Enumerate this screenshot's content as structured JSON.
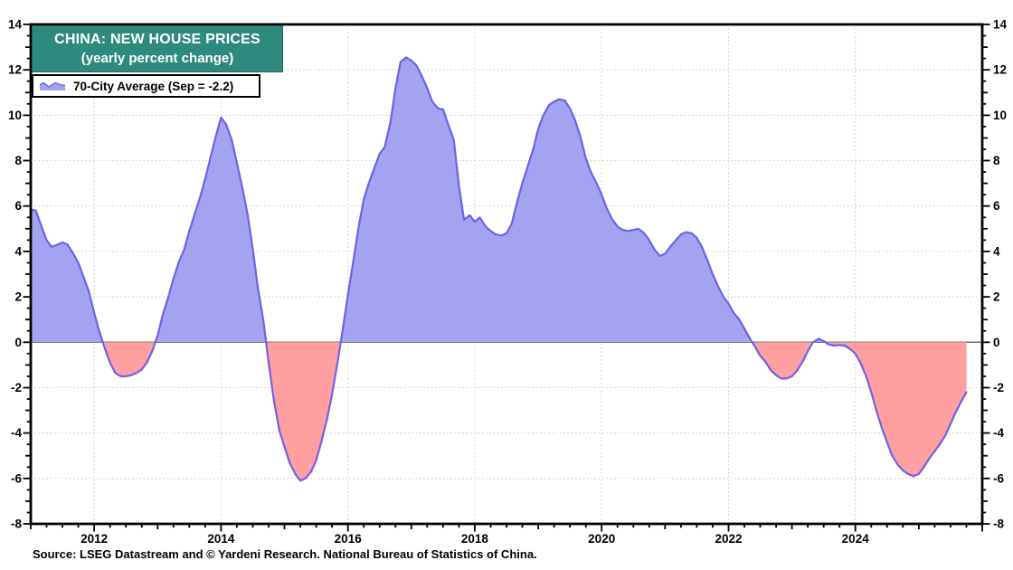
{
  "title": {
    "line1": "CHINA: NEW HOUSE PRICES",
    "line2": "(yearly percent change)"
  },
  "legend": {
    "label": "70-City Average (Sep = -2.2)"
  },
  "source": "Source: LSEG Datastream and © Yardeni Research. National Bureau of Statistics of China.",
  "chart_data": {
    "type": "area",
    "title": "CHINA: NEW HOUSE PRICES (yearly percent change)",
    "series_name": "70-City Average",
    "latest_point": {
      "label": "Sep",
      "value": -2.2
    },
    "xlabel": "",
    "ylabel": "yearly percent change",
    "xlim": [
      2011,
      2026
    ],
    "ylim": [
      -8,
      14
    ],
    "x_ticks": [
      2012,
      2014,
      2016,
      2018,
      2020,
      2022,
      2024
    ],
    "y_ticks": [
      -8,
      -6,
      -4,
      -2,
      0,
      2,
      4,
      6,
      8,
      10,
      12,
      14
    ],
    "grid": "dotted gridlines at labeled ticks, solid gray zero line, y labels on both sides",
    "colors": {
      "fill_positive": "#a3a3f1",
      "fill_negative": "#ff9f9f",
      "line": "#6f61e8",
      "title_bg": "#2e8a7c",
      "zero_line": "#6f6f6f",
      "gridline": "#c9c9c9",
      "axis": "#000000"
    },
    "points": [
      [
        2011.0,
        5.85
      ],
      [
        2011.08,
        5.8
      ],
      [
        2011.17,
        5.1
      ],
      [
        2011.25,
        4.5
      ],
      [
        2011.33,
        4.2
      ],
      [
        2011.42,
        4.3
      ],
      [
        2011.5,
        4.4
      ],
      [
        2011.58,
        4.3
      ],
      [
        2011.67,
        3.9
      ],
      [
        2011.75,
        3.5
      ],
      [
        2011.83,
        2.9
      ],
      [
        2011.92,
        2.2
      ],
      [
        2012.0,
        1.3
      ],
      [
        2012.08,
        0.5
      ],
      [
        2012.17,
        -0.3
      ],
      [
        2012.25,
        -0.9
      ],
      [
        2012.33,
        -1.35
      ],
      [
        2012.42,
        -1.5
      ],
      [
        2012.5,
        -1.5
      ],
      [
        2012.58,
        -1.45
      ],
      [
        2012.67,
        -1.35
      ],
      [
        2012.75,
        -1.2
      ],
      [
        2012.83,
        -0.9
      ],
      [
        2012.92,
        -0.35
      ],
      [
        2013.0,
        0.3
      ],
      [
        2013.08,
        1.2
      ],
      [
        2013.17,
        2.0
      ],
      [
        2013.25,
        2.8
      ],
      [
        2013.33,
        3.5
      ],
      [
        2013.42,
        4.1
      ],
      [
        2013.5,
        4.9
      ],
      [
        2013.58,
        5.6
      ],
      [
        2013.67,
        6.4
      ],
      [
        2013.75,
        7.2
      ],
      [
        2013.83,
        8.1
      ],
      [
        2013.92,
        9.1
      ],
      [
        2014.0,
        9.9
      ],
      [
        2014.08,
        9.6
      ],
      [
        2014.17,
        8.9
      ],
      [
        2014.25,
        7.9
      ],
      [
        2014.33,
        6.9
      ],
      [
        2014.42,
        5.6
      ],
      [
        2014.5,
        4.1
      ],
      [
        2014.58,
        2.4
      ],
      [
        2014.67,
        0.9
      ],
      [
        2014.75,
        -0.9
      ],
      [
        2014.83,
        -2.5
      ],
      [
        2014.92,
        -3.9
      ],
      [
        2015.0,
        -4.6
      ],
      [
        2015.08,
        -5.3
      ],
      [
        2015.17,
        -5.8
      ],
      [
        2015.25,
        -6.1
      ],
      [
        2015.33,
        -6.0
      ],
      [
        2015.42,
        -5.7
      ],
      [
        2015.5,
        -5.2
      ],
      [
        2015.58,
        -4.4
      ],
      [
        2015.67,
        -3.4
      ],
      [
        2015.75,
        -2.3
      ],
      [
        2015.83,
        -1.0
      ],
      [
        2015.92,
        0.6
      ],
      [
        2016.0,
        2.1
      ],
      [
        2016.08,
        3.5
      ],
      [
        2016.17,
        5.1
      ],
      [
        2016.25,
        6.3
      ],
      [
        2016.33,
        7.0
      ],
      [
        2016.42,
        7.7
      ],
      [
        2016.5,
        8.3
      ],
      [
        2016.58,
        8.6
      ],
      [
        2016.67,
        9.7
      ],
      [
        2016.75,
        11.2
      ],
      [
        2016.83,
        12.35
      ],
      [
        2016.92,
        12.55
      ],
      [
        2017.0,
        12.4
      ],
      [
        2017.08,
        12.2
      ],
      [
        2017.17,
        11.7
      ],
      [
        2017.25,
        11.2
      ],
      [
        2017.33,
        10.6
      ],
      [
        2017.42,
        10.3
      ],
      [
        2017.5,
        10.25
      ],
      [
        2017.58,
        9.6
      ],
      [
        2017.67,
        8.9
      ],
      [
        2017.75,
        6.9
      ],
      [
        2017.83,
        5.4
      ],
      [
        2017.92,
        5.6
      ],
      [
        2018.0,
        5.3
      ],
      [
        2018.08,
        5.5
      ],
      [
        2018.17,
        5.1
      ],
      [
        2018.25,
        4.9
      ],
      [
        2018.33,
        4.75
      ],
      [
        2018.42,
        4.7
      ],
      [
        2018.5,
        4.8
      ],
      [
        2018.58,
        5.2
      ],
      [
        2018.67,
        6.2
      ],
      [
        2018.75,
        7.0
      ],
      [
        2018.83,
        7.7
      ],
      [
        2018.92,
        8.5
      ],
      [
        2019.0,
        9.4
      ],
      [
        2019.08,
        10.0
      ],
      [
        2019.17,
        10.45
      ],
      [
        2019.25,
        10.6
      ],
      [
        2019.33,
        10.7
      ],
      [
        2019.42,
        10.65
      ],
      [
        2019.5,
        10.3
      ],
      [
        2019.58,
        9.8
      ],
      [
        2019.67,
        9.0
      ],
      [
        2019.75,
        8.1
      ],
      [
        2019.83,
        7.5
      ],
      [
        2019.92,
        7.0
      ],
      [
        2020.0,
        6.5
      ],
      [
        2020.08,
        5.9
      ],
      [
        2020.17,
        5.4
      ],
      [
        2020.25,
        5.1
      ],
      [
        2020.33,
        4.95
      ],
      [
        2020.42,
        4.9
      ],
      [
        2020.5,
        4.95
      ],
      [
        2020.58,
        5.0
      ],
      [
        2020.67,
        4.8
      ],
      [
        2020.75,
        4.5
      ],
      [
        2020.83,
        4.1
      ],
      [
        2020.92,
        3.8
      ],
      [
        2021.0,
        3.9
      ],
      [
        2021.08,
        4.2
      ],
      [
        2021.17,
        4.5
      ],
      [
        2021.25,
        4.75
      ],
      [
        2021.33,
        4.85
      ],
      [
        2021.42,
        4.8
      ],
      [
        2021.5,
        4.6
      ],
      [
        2021.58,
        4.2
      ],
      [
        2021.67,
        3.6
      ],
      [
        2021.75,
        3.0
      ],
      [
        2021.83,
        2.5
      ],
      [
        2021.92,
        2.0
      ],
      [
        2022.0,
        1.7
      ],
      [
        2022.08,
        1.3
      ],
      [
        2022.17,
        1.0
      ],
      [
        2022.25,
        0.6
      ],
      [
        2022.33,
        0.2
      ],
      [
        2022.42,
        -0.2
      ],
      [
        2022.5,
        -0.6
      ],
      [
        2022.58,
        -0.85
      ],
      [
        2022.67,
        -1.25
      ],
      [
        2022.75,
        -1.45
      ],
      [
        2022.83,
        -1.6
      ],
      [
        2022.92,
        -1.6
      ],
      [
        2023.0,
        -1.5
      ],
      [
        2023.08,
        -1.25
      ],
      [
        2023.17,
        -0.85
      ],
      [
        2023.25,
        -0.4
      ],
      [
        2023.33,
        0.0
      ],
      [
        2023.42,
        0.15
      ],
      [
        2023.5,
        0.05
      ],
      [
        2023.58,
        -0.1
      ],
      [
        2023.67,
        -0.15
      ],
      [
        2023.75,
        -0.12
      ],
      [
        2023.83,
        -0.15
      ],
      [
        2023.92,
        -0.3
      ],
      [
        2024.0,
        -0.5
      ],
      [
        2024.08,
        -0.9
      ],
      [
        2024.17,
        -1.5
      ],
      [
        2024.25,
        -2.2
      ],
      [
        2024.33,
        -3.0
      ],
      [
        2024.42,
        -3.8
      ],
      [
        2024.5,
        -4.4
      ],
      [
        2024.58,
        -5.0
      ],
      [
        2024.67,
        -5.4
      ],
      [
        2024.75,
        -5.65
      ],
      [
        2024.83,
        -5.8
      ],
      [
        2024.92,
        -5.9
      ],
      [
        2025.0,
        -5.8
      ],
      [
        2025.08,
        -5.5
      ],
      [
        2025.17,
        -5.1
      ],
      [
        2025.25,
        -4.8
      ],
      [
        2025.33,
        -4.5
      ],
      [
        2025.42,
        -4.1
      ],
      [
        2025.5,
        -3.6
      ],
      [
        2025.58,
        -3.1
      ],
      [
        2025.67,
        -2.6
      ],
      [
        2025.75,
        -2.2
      ]
    ]
  }
}
